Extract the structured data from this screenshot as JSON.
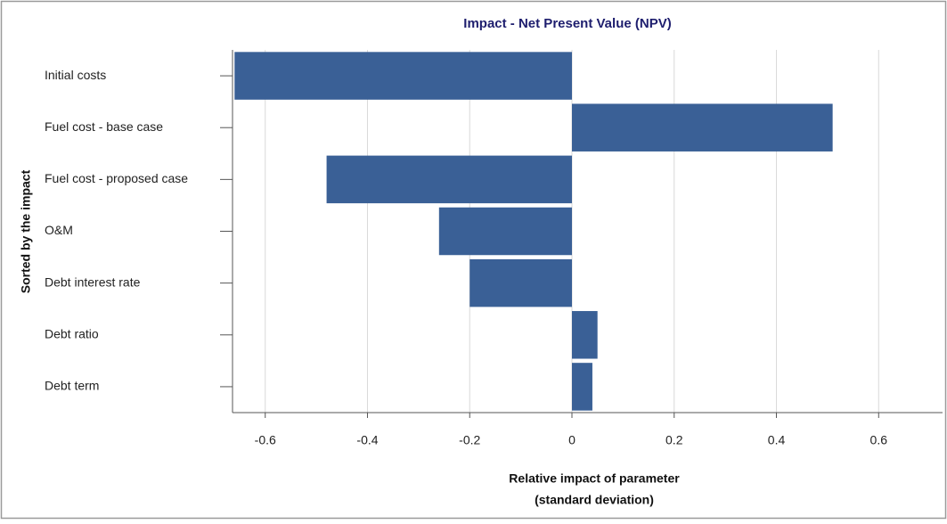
{
  "chart_data": {
    "type": "hbar",
    "title": "Impact - Net Present Value (NPV)",
    "y_label": "Sorted by the impact",
    "x_label": [
      "Relative impact of parameter",
      "(standard deviation)"
    ],
    "categories": [
      "Initial costs",
      "Fuel cost - base case",
      "Fuel cost - proposed case",
      "O&M",
      "Debt interest rate",
      "Debt ratio",
      "Debt term"
    ],
    "values": [
      -0.66,
      0.51,
      -0.48,
      -0.26,
      -0.2,
      0.05,
      0.04
    ],
    "color": "#3a6096",
    "xlim": [
      -0.664,
      0.725
    ],
    "xticks": [
      -0.6,
      -0.4,
      -0.2,
      0,
      0.2,
      0.4,
      0.6
    ],
    "grid": true
  }
}
